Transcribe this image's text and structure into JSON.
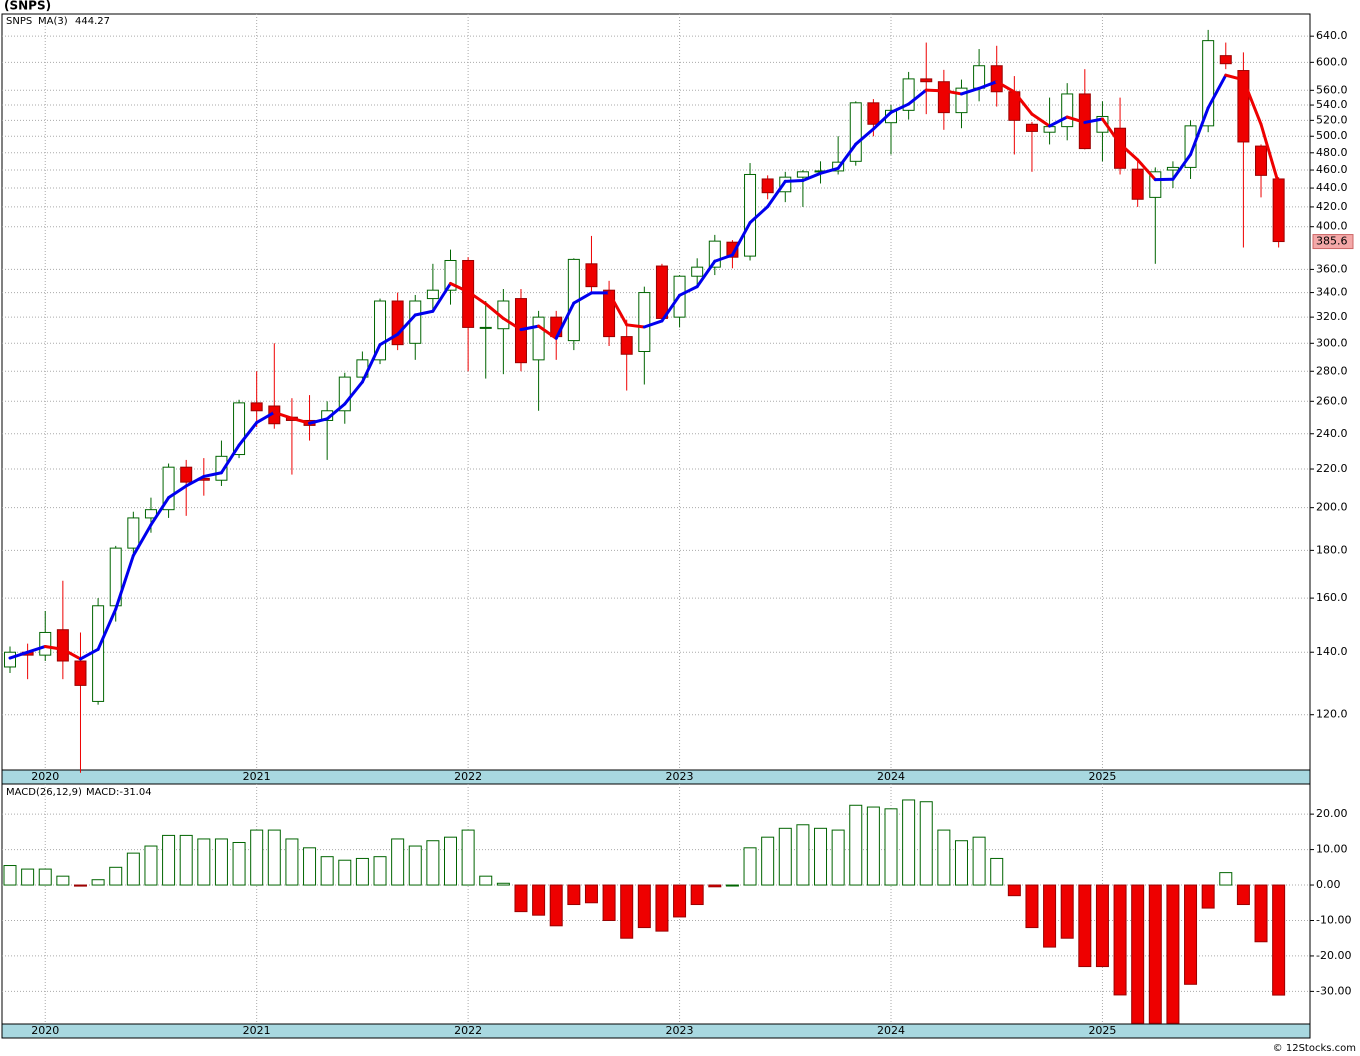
{
  "chart_data": [
    {
      "type": "candlestick",
      "title": "(SNPS)",
      "name": "SNPS",
      "log_scale": true,
      "grid": true,
      "categories": [
        null,
        null,
        "2020",
        null,
        null,
        null,
        null,
        null,
        null,
        null,
        null,
        null,
        null,
        null,
        "2021",
        null,
        null,
        null,
        null,
        null,
        null,
        null,
        null,
        null,
        null,
        null,
        "2022",
        null,
        null,
        null,
        null,
        null,
        null,
        null,
        null,
        null,
        null,
        null,
        "2023",
        null,
        null,
        null,
        null,
        null,
        null,
        null,
        null,
        null,
        null,
        null,
        "2024",
        null,
        null,
        null,
        null,
        null,
        null,
        null,
        null,
        null,
        null,
        null,
        "2025",
        null,
        null,
        null,
        null,
        null,
        null,
        null,
        null,
        null,
        null
      ],
      "open": [
        135,
        140,
        139,
        148,
        137,
        124,
        157,
        181,
        195,
        199,
        221,
        215,
        214,
        228,
        259,
        257,
        250,
        248,
        248,
        254,
        276,
        288,
        333,
        300,
        335,
        342,
        368,
        312,
        311,
        335,
        288,
        320,
        302,
        365,
        342,
        305,
        294,
        363,
        320,
        354,
        362,
        385,
        372,
        450,
        436,
        452,
        458,
        459,
        470,
        543,
        517,
        533,
        576,
        572,
        530,
        563,
        595,
        558,
        515,
        505,
        512,
        555,
        505,
        510,
        461,
        430,
        460,
        463,
        513,
        610,
        588,
        488,
        450
      ],
      "high": [
        142,
        143,
        155,
        167,
        147,
        160,
        182,
        198,
        205,
        223,
        225,
        226,
        236,
        261,
        280,
        300,
        262,
        264,
        260,
        279,
        294,
        335,
        340,
        338,
        365,
        378,
        371,
        333,
        343,
        343,
        325,
        325,
        370,
        391,
        350,
        318,
        345,
        365,
        355,
        370,
        392,
        387,
        468,
        454,
        458,
        460,
        470,
        500,
        545,
        548,
        540,
        586,
        630,
        589,
        575,
        620,
        625,
        580,
        518,
        550,
        570,
        590,
        545,
        550,
        470,
        463,
        470,
        520,
        650,
        630,
        615,
        490,
        452
      ],
      "low": [
        133,
        131,
        137,
        131,
        104,
        123,
        151,
        178,
        188,
        195,
        196,
        206,
        211,
        226,
        244,
        243,
        217,
        236,
        225,
        246,
        275,
        285,
        295,
        288,
        324,
        330,
        280,
        275,
        278,
        280,
        254,
        288,
        295,
        340,
        298,
        267,
        271,
        318,
        312,
        345,
        355,
        361,
        368,
        428,
        425,
        420,
        445,
        455,
        465,
        500,
        478,
        521,
        528,
        508,
        510,
        545,
        538,
        478,
        458,
        490,
        495,
        484,
        470,
        455,
        420,
        365,
        440,
        450,
        505,
        590,
        380,
        430,
        380
      ],
      "close": [
        140,
        139,
        147,
        137,
        129,
        157,
        181,
        195,
        199,
        221,
        213,
        214,
        227,
        259,
        254,
        246,
        248,
        245,
        254,
        276,
        288,
        333,
        299,
        333,
        342,
        368,
        312,
        312,
        333,
        286,
        320,
        305,
        369,
        345,
        305,
        292,
        340,
        319,
        354,
        362,
        386,
        371,
        455,
        435,
        452,
        458,
        459,
        469,
        543,
        515,
        533,
        576,
        572,
        530,
        563,
        595,
        558,
        520,
        506,
        512,
        555,
        485,
        525,
        462,
        428,
        458,
        463,
        513,
        633,
        598,
        493,
        454,
        385.6
      ],
      "up_color": "#006400",
      "down_color": "#ee0000",
      "ma": {
        "name": "MA(3)",
        "rise_color": "#0000ee",
        "fall_color": "#ee0000",
        "values": [
          138,
          140,
          142,
          141,
          137.7,
          141,
          155.7,
          177.7,
          191.7,
          205,
          211,
          216,
          218,
          233.3,
          246.7,
          253,
          249.3,
          246.3,
          249,
          258.3,
          272.7,
          299,
          306.7,
          321.7,
          324.7,
          347.7,
          340.7,
          330.7,
          319,
          310.3,
          313,
          303.7,
          331.3,
          339.7,
          339.7,
          314,
          312.3,
          317,
          337.7,
          345,
          367.3,
          373,
          404,
          420.3,
          447.3,
          448.3,
          456.3,
          462,
          490.3,
          509,
          530.3,
          541.3,
          560.3,
          559.3,
          555,
          562.7,
          572,
          557.7,
          528,
          512.7,
          524.3,
          517.3,
          521.7,
          490.7,
          471.7,
          449.3,
          449.7,
          478,
          536.3,
          581.3,
          574.7,
          515,
          444.27
        ]
      },
      "ylim": [
        104.7,
        676
      ],
      "yticks": [
        {
          "value": 120,
          "label": "120.0"
        },
        {
          "value": 140,
          "label": "140.0"
        },
        {
          "value": 160,
          "label": "160.0"
        },
        {
          "value": 180,
          "label": "180.0"
        },
        {
          "value": 200,
          "label": "200.0"
        },
        {
          "value": 220,
          "label": "220.0"
        },
        {
          "value": 240,
          "label": "240.0"
        },
        {
          "value": 260,
          "label": "260.0"
        },
        {
          "value": 280,
          "label": "280.0"
        },
        {
          "value": 300,
          "label": "300.0"
        },
        {
          "value": 320,
          "label": "320.0"
        },
        {
          "value": 340,
          "label": "340.0"
        },
        {
          "value": 360,
          "label": "360.0"
        },
        {
          "value": 400,
          "label": "400.0"
        },
        {
          "value": 420,
          "label": "420.0"
        },
        {
          "value": 440,
          "label": "440.0"
        },
        {
          "value": 460,
          "label": "460.0"
        },
        {
          "value": 480,
          "label": "480.0"
        },
        {
          "value": 500,
          "label": "500.0"
        },
        {
          "value": 520,
          "label": "520.0"
        },
        {
          "value": 540,
          "label": "540.0"
        },
        {
          "value": 560,
          "label": "560.0"
        },
        {
          "value": 600,
          "label": "600.0"
        },
        {
          "value": 640,
          "label": "640.0"
        }
      ]
    },
    {
      "type": "bar",
      "name": "MACD(26,12,9)",
      "readout": "MACD:-31.04",
      "grid": true,
      "pos_color": "#006400",
      "neg_color": "#ee0000",
      "values": [
        5.5,
        4.5,
        4.5,
        2.5,
        -0.3,
        1.5,
        5,
        9,
        11,
        14,
        14,
        13,
        13,
        12,
        15.5,
        15.5,
        13,
        10.5,
        8,
        7,
        7.5,
        8,
        13,
        11,
        12.5,
        13.5,
        15.5,
        2.5,
        0.5,
        -7.5,
        -8.5,
        -11.5,
        -5.5,
        -5,
        -10,
        -15,
        -12,
        -13,
        -9,
        -5.5,
        -0.5,
        0,
        10.5,
        13.5,
        16,
        17,
        16,
        15.5,
        22.5,
        22,
        21.5,
        24,
        23.5,
        15.5,
        12.5,
        13.5,
        7.5,
        -3,
        -12,
        -17.5,
        -15,
        -23,
        -23,
        -31,
        -39,
        -39,
        -39,
        -28,
        -6.5,
        3.5,
        -5.5,
        -16,
        -31.04
      ],
      "ylim": [
        -39.2,
        28.5
      ],
      "yticks": [
        {
          "value": -30,
          "label": "-30.00"
        },
        {
          "value": -20,
          "label": "-20.00"
        },
        {
          "value": -10,
          "label": "-10.00"
        },
        {
          "value": 0,
          "label": "0.00"
        },
        {
          "value": 10,
          "label": "10.00"
        },
        {
          "value": 20,
          "label": "20.00"
        }
      ]
    }
  ],
  "footer": "© 12Stocks.com"
}
